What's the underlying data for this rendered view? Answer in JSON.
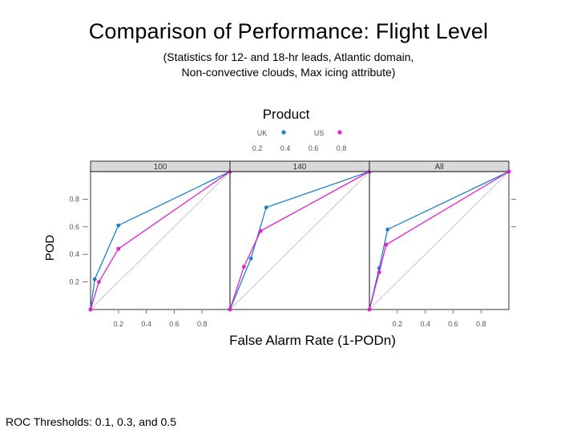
{
  "slide": {
    "title": "Comparison of Performance: Flight Level",
    "subtitle_line1": "(Statistics for 12- and 18-hr leads, Atlantic domain,",
    "subtitle_line2": "Non-convective clouds, Max icing attribute)",
    "footnote": "ROC Thresholds: 0.1, 0.3, and 0.5"
  },
  "chart_data": {
    "type": "line",
    "layout": "trellis-3-panels",
    "xlabel": "False Alarm Rate (1-PODn)",
    "ylabel": "POD",
    "legend_title": "Product",
    "legend_position": "top",
    "xlim": [
      0,
      1
    ],
    "ylim": [
      0,
      1
    ],
    "xticks": [
      0.2,
      0.4,
      0.6,
      0.8
    ],
    "yticks": [
      0.2,
      0.4,
      0.6,
      0.8
    ],
    "legend_ticks": [
      0.2,
      0.4,
      0.6,
      0.8
    ],
    "panels": [
      {
        "strip": "100",
        "series": [
          {
            "name": "UK",
            "color": "#1a82c8",
            "x": [
              0.0,
              0.03,
              0.2,
              1.0
            ],
            "y": [
              0.0,
              0.22,
              0.61,
              1.0
            ]
          },
          {
            "name": "US",
            "color": "#e020d0",
            "x": [
              0.0,
              0.06,
              0.2,
              1.0
            ],
            "y": [
              0.0,
              0.2,
              0.44,
              1.0
            ]
          }
        ]
      },
      {
        "strip": "140",
        "series": [
          {
            "name": "UK",
            "color": "#1a82c8",
            "x": [
              0.0,
              0.15,
              0.26,
              1.0
            ],
            "y": [
              0.0,
              0.37,
              0.74,
              1.0
            ]
          },
          {
            "name": "US",
            "color": "#e020d0",
            "x": [
              0.0,
              0.1,
              0.22,
              1.0
            ],
            "y": [
              0.0,
              0.31,
              0.57,
              1.0
            ]
          }
        ]
      },
      {
        "strip": "All",
        "series": [
          {
            "name": "UK",
            "color": "#1a82c8",
            "x": [
              0.0,
              0.07,
              0.13,
              1.0
            ],
            "y": [
              0.0,
              0.3,
              0.58,
              1.0
            ]
          },
          {
            "name": "US",
            "color": "#e020d0",
            "x": [
              0.0,
              0.07,
              0.12,
              1.0
            ],
            "y": [
              0.0,
              0.27,
              0.47,
              1.0
            ]
          }
        ]
      }
    ]
  }
}
